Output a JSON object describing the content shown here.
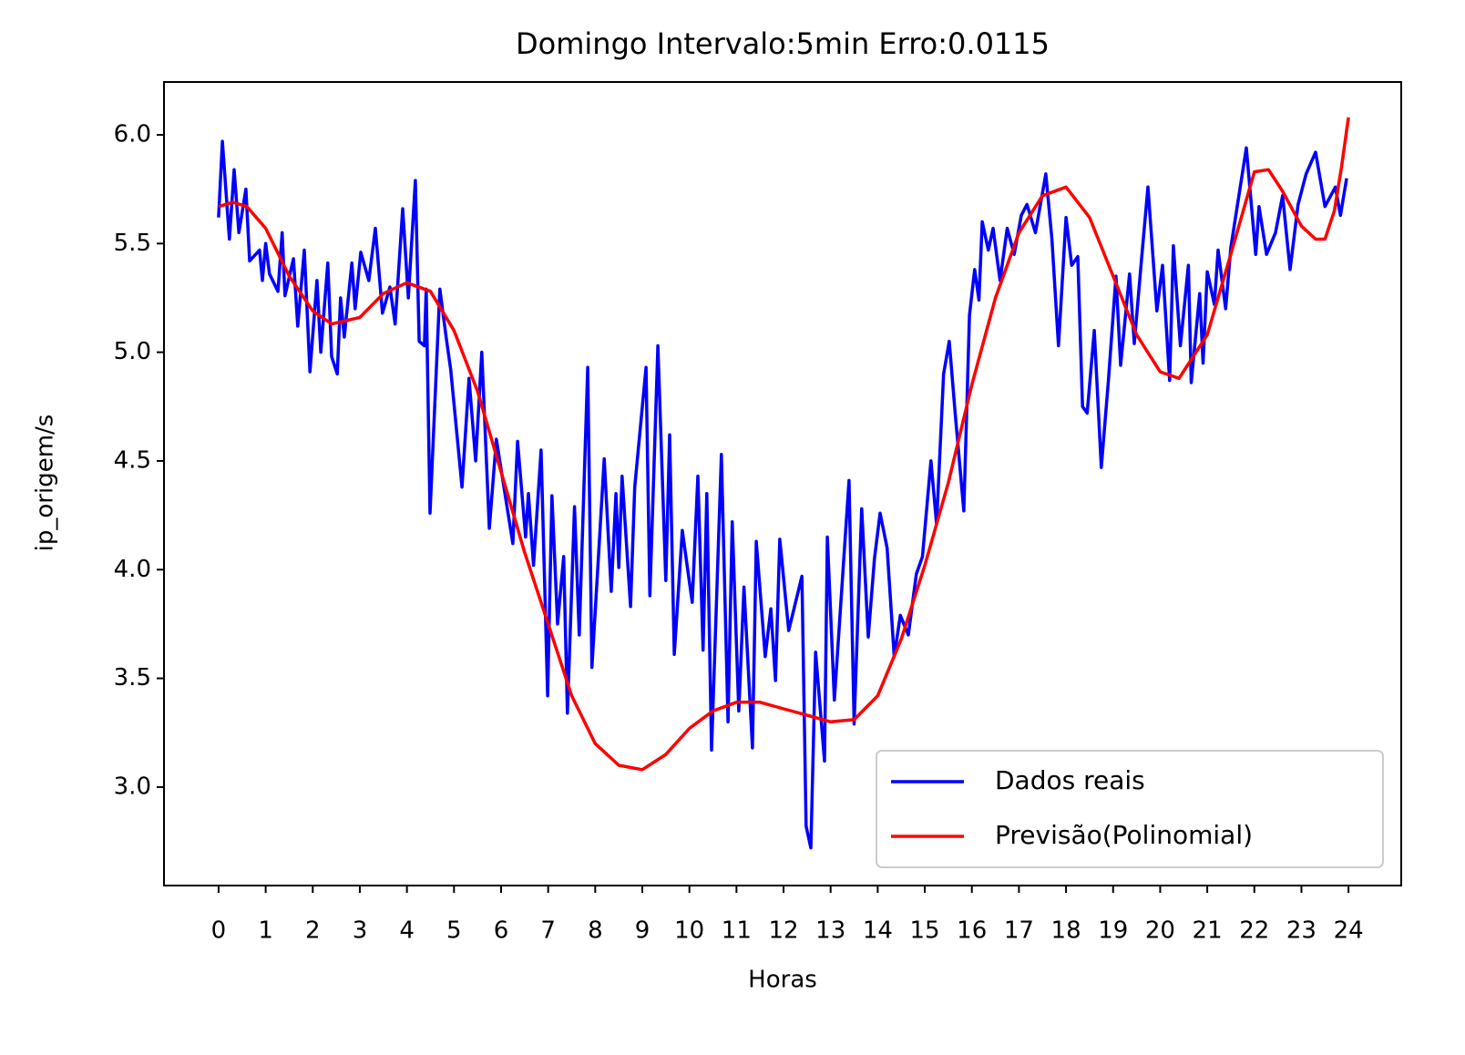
{
  "chart_data": {
    "type": "line",
    "title": "Domingo Intervalo:5min Erro:0.0115",
    "xlabel": "Horas",
    "ylabel": "ip_origem/s",
    "xlim": [
      -1.16,
      25.12
    ],
    "ylim": [
      2.547,
      6.243
    ],
    "xticks": [
      0,
      1,
      2,
      3,
      4,
      5,
      6,
      7,
      8,
      9,
      10,
      11,
      12,
      13,
      14,
      15,
      16,
      17,
      18,
      19,
      20,
      21,
      22,
      23,
      24
    ],
    "yticks": [
      {
        "value": 3,
        "label": "3.0"
      },
      {
        "value": 3.5,
        "label": "3.5"
      },
      {
        "value": 4,
        "label": "4.0"
      },
      {
        "value": 4.5,
        "label": "4.5"
      },
      {
        "value": 5,
        "label": "5.0"
      },
      {
        "value": 5.5,
        "label": "5.5"
      },
      {
        "value": 6,
        "label": "6.0"
      }
    ],
    "legend": "lower right",
    "series": [
      {
        "name": "Dados reais",
        "color": "#0000ff",
        "x": [
          0,
          0.08,
          0.23,
          0.33,
          0.43,
          0.58,
          0.66,
          0.87,
          0.93,
          1.0,
          1.08,
          1.26,
          1.35,
          1.41,
          1.59,
          1.68,
          1.82,
          1.94,
          2.09,
          2.17,
          2.32,
          2.4,
          2.52,
          2.59,
          2.67,
          2.83,
          2.9,
          3.02,
          3.19,
          3.33,
          3.48,
          3.64,
          3.75,
          3.91,
          4.03,
          4.18,
          4.26,
          4.37,
          4.41,
          4.49,
          4.7,
          4.84,
          4.93,
          5.17,
          5.32,
          5.46,
          5.59,
          5.75,
          5.9,
          6.25,
          6.35,
          6.52,
          6.58,
          6.69,
          6.85,
          6.99,
          7.08,
          7.2,
          7.33,
          7.41,
          7.49,
          7.56,
          7.66,
          7.84,
          7.93,
          8.19,
          8.34,
          8.44,
          8.5,
          8.57,
          8.75,
          8.84,
          9.08,
          9.16,
          9.33,
          9.5,
          9.58,
          9.68,
          9.85,
          10.06,
          10.18,
          10.29,
          10.37,
          10.47,
          10.68,
          10.82,
          10.91,
          11.05,
          11.16,
          11.34,
          11.42,
          11.61,
          11.73,
          11.83,
          11.92,
          12.11,
          12.39,
          12.48,
          12.58,
          12.68,
          12.87,
          12.93,
          13.08,
          13.39,
          13.5,
          13.66,
          13.8,
          13.93,
          14.05,
          14.2,
          14.35,
          14.48,
          14.65,
          14.82,
          14.95,
          15.13,
          15.25,
          15.4,
          15.52,
          15.65,
          15.83,
          15.95,
          16.06,
          16.15,
          16.22,
          16.35,
          16.45,
          16.6,
          16.75,
          16.9,
          17.05,
          17.17,
          17.35,
          17.57,
          17.7,
          17.84,
          18.0,
          18.12,
          18.25,
          18.35,
          18.45,
          18.6,
          18.75,
          18.9,
          19.06,
          19.16,
          19.35,
          19.45,
          19.6,
          19.74,
          19.93,
          20.05,
          20.2,
          20.28,
          20.43,
          20.6,
          20.66,
          20.84,
          20.91,
          21.0,
          21.15,
          21.23,
          21.39,
          21.5,
          21.83,
          22.03,
          22.1,
          22.26,
          22.45,
          22.6,
          22.76,
          22.93,
          23.1,
          23.3,
          23.5,
          23.72,
          23.83,
          23.96
        ],
        "values": [
          5.62,
          5.97,
          5.52,
          5.84,
          5.55,
          5.75,
          5.42,
          5.47,
          5.33,
          5.5,
          5.36,
          5.28,
          5.55,
          5.26,
          5.43,
          5.12,
          5.47,
          4.91,
          5.33,
          5.0,
          5.41,
          4.98,
          4.9,
          5.25,
          5.07,
          5.41,
          5.2,
          5.46,
          5.33,
          5.57,
          5.18,
          5.3,
          5.13,
          5.66,
          5.25,
          5.79,
          5.05,
          5.03,
          5.29,
          4.26,
          5.29,
          5.06,
          4.92,
          4.38,
          4.88,
          4.5,
          5.0,
          4.19,
          4.6,
          4.12,
          4.59,
          4.15,
          4.35,
          4.02,
          4.55,
          3.42,
          4.34,
          3.75,
          4.06,
          3.34,
          3.85,
          4.29,
          3.7,
          4.93,
          3.55,
          4.51,
          3.9,
          4.35,
          4.01,
          4.43,
          3.83,
          4.38,
          4.93,
          3.88,
          5.03,
          3.95,
          4.62,
          3.61,
          4.18,
          3.85,
          4.43,
          3.63,
          4.35,
          3.17,
          4.53,
          3.3,
          4.22,
          3.35,
          3.92,
          3.18,
          4.13,
          3.6,
          3.82,
          3.49,
          4.14,
          3.72,
          3.97,
          2.82,
          2.72,
          3.62,
          3.12,
          4.15,
          3.4,
          4.41,
          3.29,
          4.28,
          3.69,
          4.05,
          4.26,
          4.1,
          3.6,
          3.79,
          3.7,
          3.98,
          4.06,
          4.5,
          4.21,
          4.9,
          5.05,
          4.71,
          4.27,
          5.17,
          5.38,
          5.24,
          5.6,
          5.47,
          5.57,
          5.33,
          5.57,
          5.45,
          5.63,
          5.68,
          5.55,
          5.82,
          5.52,
          5.03,
          5.62,
          5.4,
          5.44,
          4.75,
          4.72,
          5.1,
          4.47,
          4.87,
          5.35,
          4.94,
          5.36,
          5.04,
          5.42,
          5.76,
          5.19,
          5.4,
          4.87,
          5.49,
          5.03,
          5.4,
          4.86,
          5.27,
          4.95,
          5.37,
          5.22,
          5.47,
          5.2,
          5.48,
          5.94,
          5.45,
          5.67,
          5.45,
          5.55,
          5.72,
          5.38,
          5.68,
          5.82,
          5.92,
          5.67,
          5.76,
          5.63,
          5.8
        ]
      },
      {
        "name": "Previsão(Polinomial)",
        "color": "#ff0000",
        "x": [
          0,
          0.3,
          0.6,
          1,
          1.5,
          2,
          2.4,
          3,
          3.5,
          4,
          4.5,
          5,
          5.5,
          6,
          6.5,
          7,
          7.5,
          8,
          8.5,
          9,
          9.5,
          10,
          10.5,
          11,
          11.5,
          12,
          12.5,
          13,
          13.5,
          14,
          14.5,
          15,
          15.5,
          16,
          16.5,
          17,
          17.5,
          18,
          18.5,
          19,
          19.5,
          20,
          20.4,
          21,
          21.5,
          22,
          22.3,
          22.6,
          23,
          23.3,
          23.5,
          23.7,
          23.85,
          24
        ],
        "values": [
          5.67,
          5.69,
          5.67,
          5.57,
          5.35,
          5.19,
          5.13,
          5.16,
          5.27,
          5.32,
          5.28,
          5.1,
          4.82,
          4.45,
          4.08,
          3.75,
          3.42,
          3.2,
          3.1,
          3.08,
          3.15,
          3.27,
          3.35,
          3.39,
          3.39,
          3.36,
          3.33,
          3.3,
          3.31,
          3.42,
          3.68,
          4.02,
          4.4,
          4.85,
          5.25,
          5.55,
          5.72,
          5.76,
          5.62,
          5.35,
          5.08,
          4.91,
          4.88,
          5.08,
          5.45,
          5.83,
          5.84,
          5.74,
          5.58,
          5.52,
          5.52,
          5.65,
          5.85,
          6.08
        ]
      }
    ]
  }
}
